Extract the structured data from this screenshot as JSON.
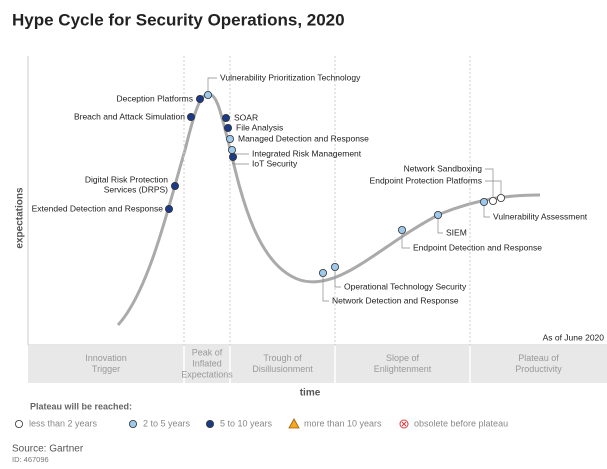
{
  "title": "Hype Cycle for Security Operations, 2020",
  "y_axis_label": "expectations",
  "x_axis_label": "time",
  "note": "As of June 2020",
  "phases": [
    [
      "Innovation",
      "Trigger"
    ],
    [
      "Peak of",
      "Inflated",
      "Expectations"
    ],
    [
      "Trough of",
      "Disillusionment"
    ],
    [
      "Slope of",
      "Enlightenment"
    ],
    [
      "Plateau of",
      "Productivity"
    ]
  ],
  "legend": {
    "title": "Plateau will be reached:",
    "groups": [
      {
        "label": "less than 2 years",
        "color": "#ffffff",
        "technologies": [
          [
            "Network Sandboxing"
          ],
          [
            "Endpoint Protection Platforms"
          ]
        ]
      },
      {
        "label": "2 to 5 years",
        "color": "#9dc9ec",
        "technologies": [
          [
            "Vulnerability Prioritization Technology"
          ],
          [
            "Managed Detection and Response"
          ],
          [
            "Integrated Risk Management"
          ],
          [
            "Network Detection and Response"
          ],
          [
            "Operational Technology Security"
          ],
          [
            "Endpoint Detection and Response"
          ],
          [
            "SIEM"
          ],
          [
            "Vulnerability Assessment"
          ]
        ]
      },
      {
        "label": "5 to 10 years",
        "color": "#1b3a87",
        "technologies": [
          [
            "Deception Platforms"
          ],
          [
            "Breach and Attack Simulation"
          ],
          [
            "SOAR"
          ],
          [
            "File Analysis"
          ],
          [
            "IoT Security"
          ],
          [
            "Digital Risk Protection",
            "Services (DRPS)"
          ],
          [
            "Extended Detection and Response"
          ]
        ]
      },
      {
        "label": "more than 10 years",
        "color": "#f5a623",
        "technologies": []
      },
      {
        "label": "obsolete before plateau",
        "color": "#e0393e",
        "technologies": []
      }
    ]
  },
  "source": "Source: Gartner",
  "id": "ID: 467096"
}
